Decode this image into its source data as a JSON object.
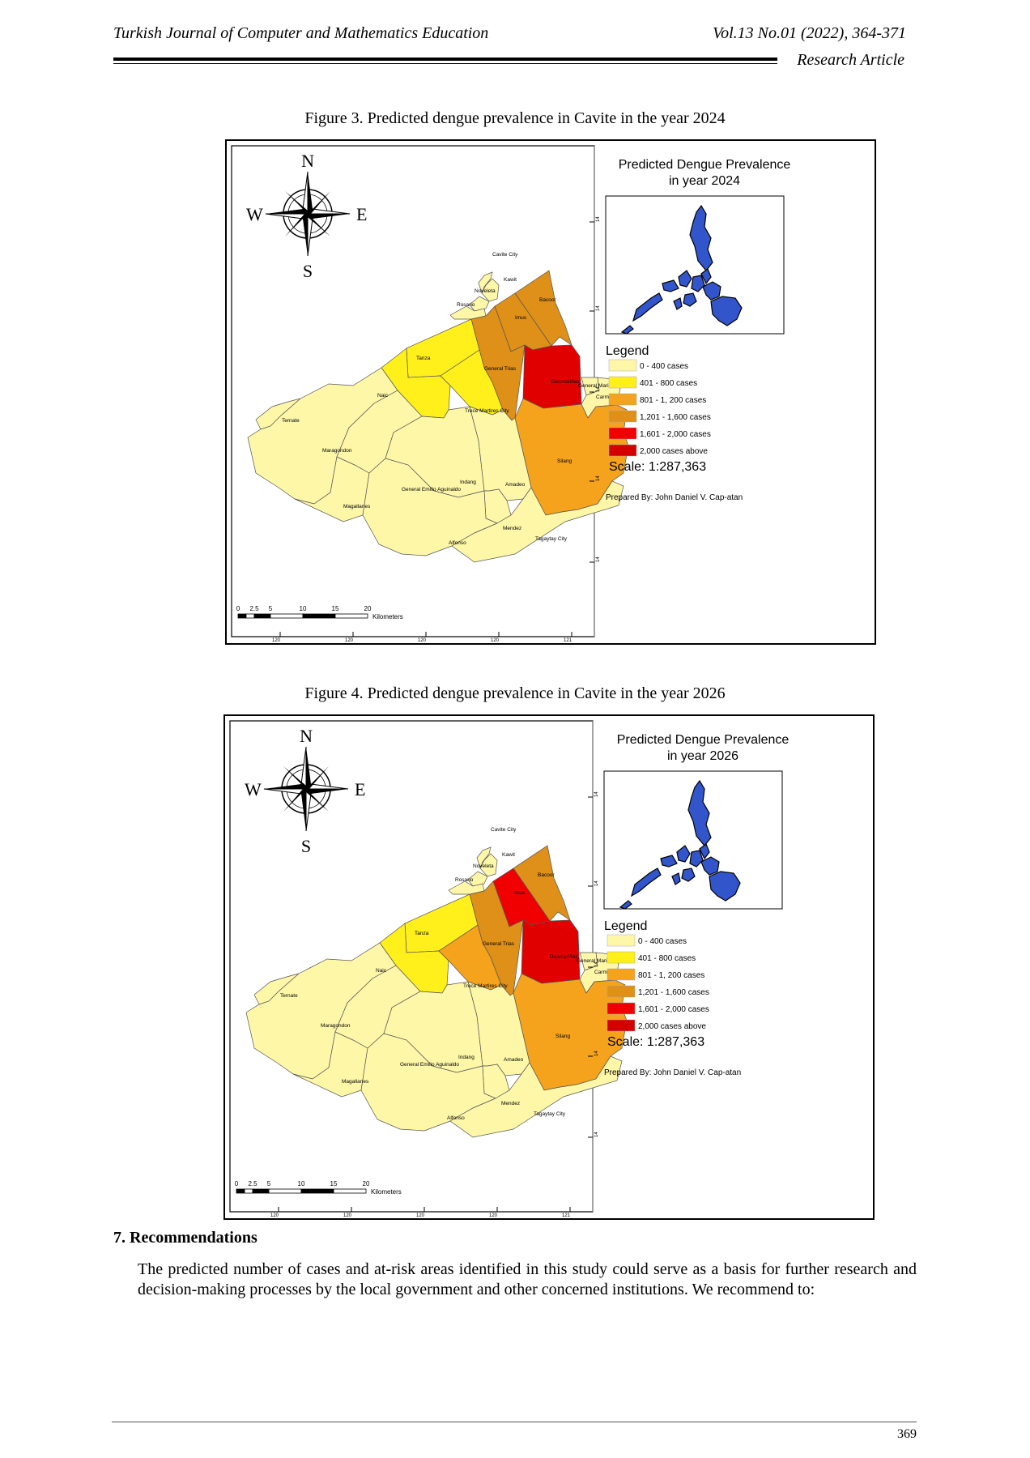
{
  "header": {
    "journal": "Turkish Journal of Computer and Mathematics Education",
    "volume": "Vol.13 No.01 (2022), 364-371",
    "article_type": "Research Article"
  },
  "figures": [
    {
      "caption": "Figure 3. Predicted dengue prevalence in Cavite in the year 2024",
      "map_title_line1": "Predicted Dengue Prevalence",
      "map_title_line2": "in year 2024",
      "municipality_colors": {
        "cavite_city": "#fff7a8",
        "kawit": "#fff7a8",
        "noveleta": "#fff7a8",
        "rosario": "#fff7a8",
        "bacoor": "#de9018",
        "imus": "#de9018",
        "general_trias": "#de9018",
        "tanza": "#ffef1a",
        "naic": "#ffef1a",
        "trece_martires": "#ffef1a",
        "dasmarinas": "#e00000",
        "carmona": "#fff7a8",
        "gma": "#fff7a8",
        "silang": "#f5a21c",
        "ternate": "#fff7a8",
        "maragondon": "#fff7a8",
        "magallanes": "#fff7a8",
        "gea": "#fff7a8",
        "indang": "#fff7a8",
        "amadeo": "#fff7a8",
        "mendez": "#fff7a8",
        "alfonso": "#fff7a8",
        "tagaytay": "#fff7a8"
      }
    },
    {
      "caption": "Figure 4. Predicted dengue prevalence in Cavite in the year 2026",
      "map_title_line1": "Predicted Dengue Prevalence",
      "map_title_line2": "in year 2026",
      "municipality_colors": {
        "cavite_city": "#fff7a8",
        "kawit": "#fff7a8",
        "noveleta": "#fff7a8",
        "rosario": "#fff7a8",
        "bacoor": "#de9018",
        "imus": "#f00000",
        "general_trias": "#de9018",
        "tanza": "#ffef1a",
        "naic": "#ffef1a",
        "trece_martires": "#f5a21c",
        "dasmarinas": "#e00000",
        "carmona": "#fff7a8",
        "gma": "#fff7a8",
        "silang": "#f5a21c",
        "ternate": "#fff7a8",
        "maragondon": "#fff7a8",
        "magallanes": "#fff7a8",
        "gea": "#fff7a8",
        "indang": "#fff7a8",
        "amadeo": "#fff7a8",
        "mendez": "#fff7a8",
        "alfonso": "#fff7a8",
        "tagaytay": "#fff7a8"
      }
    }
  ],
  "compass": {
    "n": "N",
    "s": "S",
    "e": "E",
    "w": "W"
  },
  "place_labels": {
    "cavite_city": "Cavite City",
    "kawit": "Kawit",
    "noveleta": "Noveleta",
    "rosario": "Rosario",
    "bacoor": "Bacoor",
    "imus": "Imus",
    "tanza": "Tanza",
    "general_trias": "General Trias",
    "dasmarinas": "Dasmariñas",
    "gma": "General Mariano Alvarez",
    "carmona": "Carmona",
    "naic": "Naic",
    "trece_martires": "Trece Martires City",
    "ternate": "Ternate",
    "maragondon": "Maragondon",
    "silang": "Silang",
    "indang": "Indang",
    "amadeo": "Amadeo",
    "gea": "General Emilio Aguinaldo",
    "magallanes": "Magallanes",
    "mendez": "Mendez",
    "alfonso": "Alfonso",
    "tagaytay": "Tagaytay City"
  },
  "legend": {
    "title": "Legend",
    "items": [
      {
        "label": "0 - 400 cases",
        "color": "#fff7a8"
      },
      {
        "label": "401 - 800 cases",
        "color": "#ffef1a"
      },
      {
        "label": "801 - 1, 200 cases",
        "color": "#f5a21c"
      },
      {
        "label": "1,201 - 1,600 cases",
        "color": "#de9018"
      },
      {
        "label": "1,601 - 2,000 cases",
        "color": "#f00000"
      },
      {
        "label": "2,000 cases above",
        "color": "#d40000"
      }
    ]
  },
  "scale_text": "Scale: 1:287,363",
  "prepared_by": "Prepared By: John Daniel V. Cap-atan",
  "scalebar": {
    "ticks": [
      "0",
      "2.5",
      "5",
      "10",
      "15",
      "20"
    ],
    "unit": "Kilometers"
  },
  "frame_ticks": {
    "bottom": "120",
    "bottom_last": "121",
    "side": "14"
  },
  "section": {
    "heading": "7. Recommendations",
    "paragraph": "The predicted number of cases and at-risk areas identified in this study could serve as a basis for further research and decision-making processes by the local government and other concerned institutions. We recommend to:"
  },
  "page_number": "369"
}
